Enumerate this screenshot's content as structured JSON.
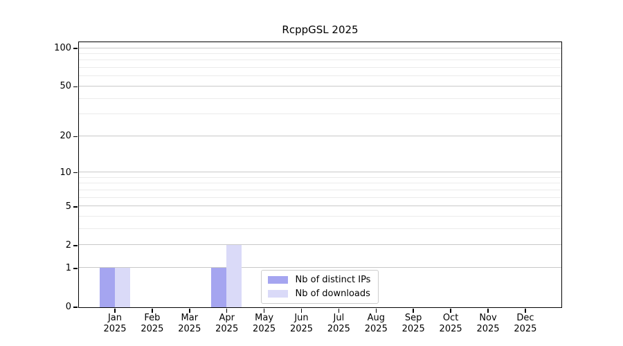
{
  "chart_data": {
    "type": "bar",
    "title": "RcppGSL 2025",
    "categories": [
      "Jan 2025",
      "Feb 2025",
      "Mar 2025",
      "Apr 2025",
      "May 2025",
      "Jun 2025",
      "Jul 2025",
      "Aug 2025",
      "Sep 2025",
      "Oct 2025",
      "Nov 2025",
      "Dec 2025"
    ],
    "series": [
      {
        "name": "Nb of distinct IPs",
        "color": "#a5a5f0",
        "values": [
          1,
          0,
          0,
          1,
          0,
          0,
          0,
          0,
          0,
          0,
          0,
          0
        ]
      },
      {
        "name": "Nb of downloads",
        "color": "#dadaf8",
        "values": [
          1,
          0,
          0,
          2,
          0,
          0,
          0,
          0,
          0,
          0,
          0,
          0
        ]
      }
    ],
    "xlabel": "",
    "ylabel": "",
    "yscale": "log1p",
    "ylim": [
      0,
      112
    ],
    "y_ticks": [
      0,
      1,
      2,
      5,
      10,
      20,
      50,
      100
    ],
    "y_minor_gridlines": [
      3,
      4,
      6,
      7,
      8,
      9,
      30,
      40,
      60,
      70,
      80,
      90
    ],
    "grid": true,
    "legend_position": "lower center (inside plot)",
    "colors": {
      "background": "#ffffff",
      "axis": "#000000",
      "grid_major": "#c8c8c8",
      "grid_minor": "#ebebeb",
      "legend_border": "#cccccc"
    }
  }
}
